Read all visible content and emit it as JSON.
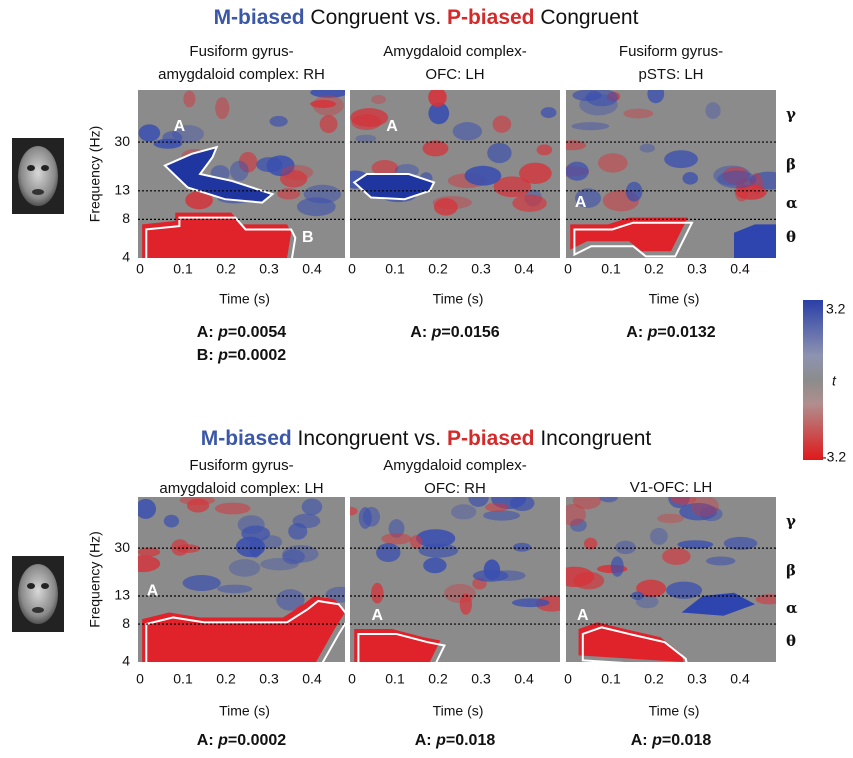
{
  "rows": [
    {
      "title": [
        {
          "text": "M-biased",
          "color": "#3b57a8"
        },
        {
          "text": " Congruent vs. ",
          "color": "#111111"
        },
        {
          "text": "P-biased",
          "color": "#d42a2a"
        },
        {
          "text": " Congruent",
          "color": "#111111"
        }
      ],
      "panels": [
        {
          "title": [
            "Fusiform gyrus-",
            "amygdaloid complex: RH"
          ],
          "regions": [
            "A",
            "B"
          ],
          "stats": [
            {
              "region": "A: ",
              "var": "p",
              "value": "=0.0054"
            },
            {
              "region": "B: ",
              "var": "p",
              "value": "=0.0002"
            }
          ]
        },
        {
          "title": [
            "Amygdaloid complex-",
            "OFC: LH"
          ],
          "regions": [
            "A"
          ],
          "stats": [
            {
              "region": "A: ",
              "var": "p",
              "value": "=0.0156"
            }
          ]
        },
        {
          "title": [
            "Fusiform gyrus-",
            "pSTS: LH"
          ],
          "regions": [
            "A"
          ],
          "stats": [
            {
              "region": "A: ",
              "var": "p",
              "value": "=0.0132"
            }
          ]
        }
      ]
    },
    {
      "title": [
        {
          "text": "M-biased",
          "color": "#3b57a8"
        },
        {
          "text": " Incongruent vs. ",
          "color": "#111111"
        },
        {
          "text": "P-biased",
          "color": "#d42a2a"
        },
        {
          "text": " Incongruent",
          "color": "#111111"
        }
      ],
      "panels": [
        {
          "title": [
            "Fusiform gyrus-",
            "amygdaloid complex: LH"
          ],
          "regions": [
            "A"
          ],
          "stats": [
            {
              "region": "A: ",
              "var": "p",
              "value": "=0.0002"
            }
          ]
        },
        {
          "title": [
            "Amygdaloid complex-",
            "OFC: RH"
          ],
          "regions": [
            "A"
          ],
          "stats": [
            {
              "region": "A: ",
              "var": "p",
              "value": "=0.018"
            }
          ]
        },
        {
          "title": [
            "V1-OFC: LH"
          ],
          "regions": [
            "A"
          ],
          "stats": [
            {
              "region": "A: ",
              "var": "p",
              "value": "=0.018"
            }
          ]
        }
      ]
    }
  ],
  "axes": {
    "y_label": "Frequency (Hz)",
    "x_label": "Time (s)",
    "xticks": [
      "0",
      "0.1",
      "0.2",
      "0.3",
      "0.4"
    ],
    "yticks": [
      "4",
      "8",
      "13",
      "30"
    ],
    "bands": [
      "γ",
      "β",
      "α",
      "θ"
    ]
  },
  "colorbar": {
    "max": "3.2",
    "min": "-3.2",
    "label": "t"
  }
}
